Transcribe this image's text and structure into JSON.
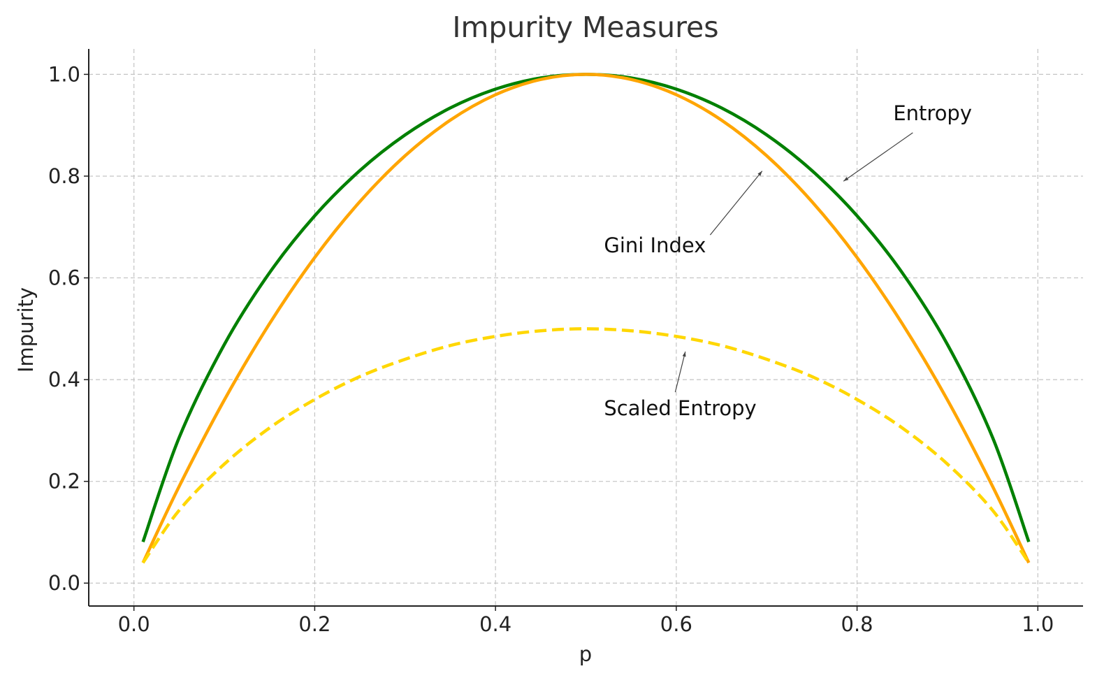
{
  "chart_data": {
    "type": "line",
    "title": "Impurity Measures",
    "xlabel": "p",
    "ylabel": "Impurity",
    "xlim": [
      -0.05,
      1.05
    ],
    "ylim": [
      -0.045,
      1.05
    ],
    "xticks": [
      0.0,
      0.2,
      0.4,
      0.6,
      0.8,
      1.0
    ],
    "yticks": [
      0.0,
      0.2,
      0.4,
      0.6,
      0.8,
      1.0
    ],
    "xtick_labels": [
      "0.0",
      "0.2",
      "0.4",
      "0.6",
      "0.8",
      "1.0"
    ],
    "ytick_labels": [
      "0.0",
      "0.2",
      "0.4",
      "0.6",
      "0.8",
      "1.0"
    ],
    "grid": true,
    "x": [
      0.01,
      0.05,
      0.1,
      0.15,
      0.2,
      0.25,
      0.3,
      0.35,
      0.4,
      0.45,
      0.5,
      0.55,
      0.6,
      0.65,
      0.7,
      0.75,
      0.8,
      0.85,
      0.9,
      0.95,
      0.99
    ],
    "series": [
      {
        "values": [
          0.081,
          0.286,
          0.469,
          0.61,
          0.722,
          0.811,
          0.881,
          0.934,
          0.971,
          0.993,
          1.0,
          0.993,
          0.971,
          0.934,
          0.881,
          0.811,
          0.722,
          0.61,
          0.469,
          0.286,
          0.081
        ],
        "color": "#008000",
        "style": "solid"
      },
      {
        "values": [
          0.04,
          0.19,
          0.36,
          0.51,
          0.64,
          0.75,
          0.84,
          0.91,
          0.96,
          0.99,
          1.0,
          0.99,
          0.96,
          0.91,
          0.84,
          0.75,
          0.64,
          0.51,
          0.36,
          0.19,
          0.04
        ],
        "color": "#ffa500",
        "style": "solid"
      },
      {
        "values": [
          0.04,
          0.143,
          0.234,
          0.305,
          0.361,
          0.406,
          0.44,
          0.467,
          0.485,
          0.496,
          0.5,
          0.496,
          0.485,
          0.467,
          0.44,
          0.406,
          0.361,
          0.305,
          0.234,
          0.143,
          0.04
        ],
        "color": "#ffd700",
        "style": "dashed"
      }
    ],
    "annotations": [
      {
        "text": "Entropy",
        "text_pos": [
          0.84,
          0.91
        ],
        "arrow_to": [
          0.785,
          0.79
        ]
      },
      {
        "text": "Gini Index",
        "text_pos": [
          0.52,
          0.65
        ],
        "arrow_to": [
          0.695,
          0.81
        ]
      },
      {
        "text": "Scaled Entropy",
        "text_pos": [
          0.52,
          0.33
        ],
        "arrow_to": [
          0.61,
          0.455
        ]
      }
    ]
  }
}
